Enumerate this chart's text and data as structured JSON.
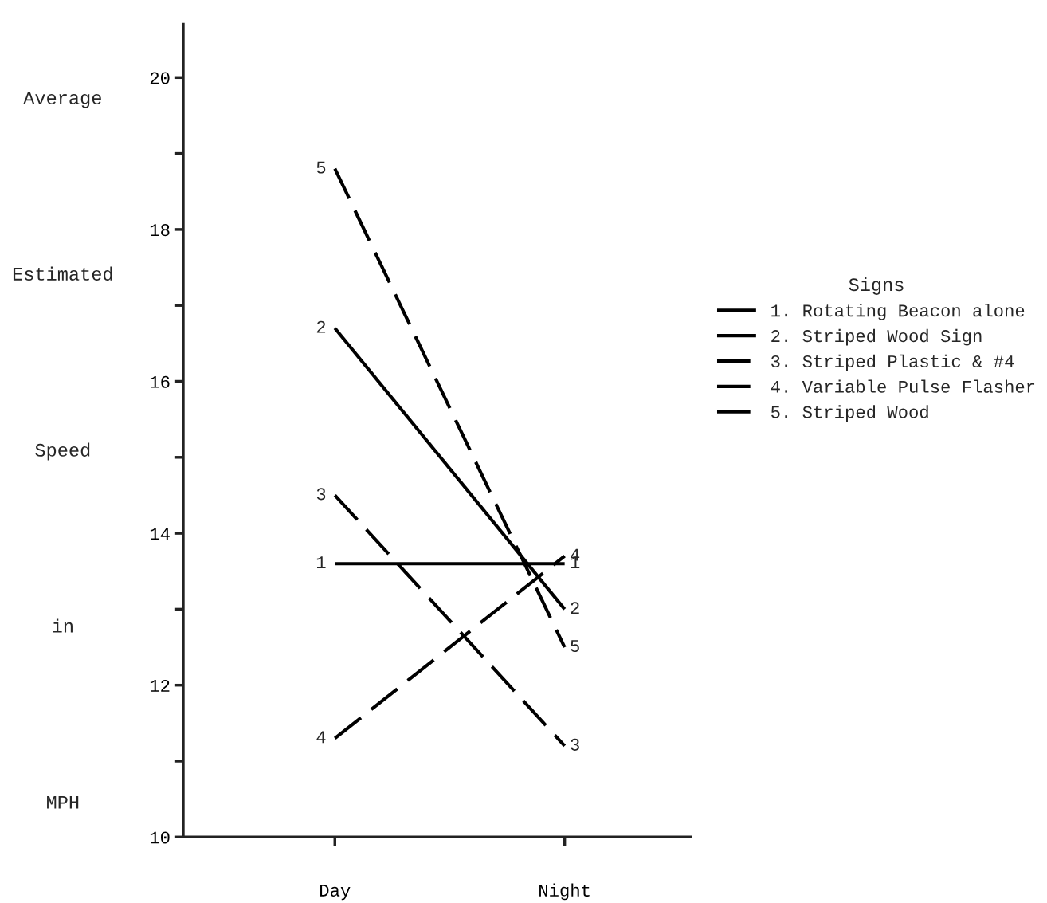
{
  "chart_data": {
    "type": "line",
    "ylabel": "Average Estimated Speed in MPH",
    "legend_title": "Signs",
    "categories": [
      "Day",
      "Night"
    ],
    "ylim": [
      10,
      20.7
    ],
    "yticks": [
      10,
      {
        "value": 11,
        "label": null
      },
      12,
      {
        "value": 13,
        "label": null
      },
      14,
      {
        "value": 15,
        "label": null
      },
      16,
      {
        "value": 17,
        "label": null
      },
      18,
      {
        "value": 19,
        "label": null
      },
      20
    ],
    "grid": false,
    "legend": "right",
    "marker": "none",
    "series": [
      {
        "name": "1. Rotating Beacon alone",
        "color": "#000000",
        "line_style": "solid",
        "values": [
          13.6,
          13.6
        ]
      },
      {
        "name": "2. Striped Wood Sign",
        "color": "#000000",
        "line_style": "solid",
        "values": [
          16.7,
          13.0
        ]
      },
      {
        "name": "3. Striped Plastic & #4",
        "color": "#000000",
        "line_style": "dashed",
        "values": [
          14.5,
          11.2
        ]
      },
      {
        "name": "4. Variable Pulse Flasher",
        "color": "#000000",
        "line_style": "dashed",
        "values": [
          11.3,
          13.7
        ]
      },
      {
        "name": "5. Striped Wood",
        "color": "#000000",
        "line_style": "dashed",
        "values": [
          18.8,
          12.5
        ]
      }
    ],
    "annotations": [
      {
        "text": "5",
        "x": "Day",
        "y": 18.8
      },
      {
        "text": "2",
        "x": "Day",
        "y": 16.7
      },
      {
        "text": "3",
        "x": "Day",
        "y": 14.5
      },
      {
        "text": "1",
        "x": "Day",
        "y": 13.6
      },
      {
        "text": "4",
        "x": "Day",
        "y": 11.3
      },
      {
        "text": "4",
        "x": "Night",
        "y": 13.7
      },
      {
        "text": "1",
        "x": "Night",
        "y": 13.6
      },
      {
        "text": "2",
        "x": "Night",
        "y": 13.0
      },
      {
        "text": "5",
        "x": "Night",
        "y": 12.5
      },
      {
        "text": "3",
        "x": "Night",
        "y": 11.2
      }
    ]
  }
}
